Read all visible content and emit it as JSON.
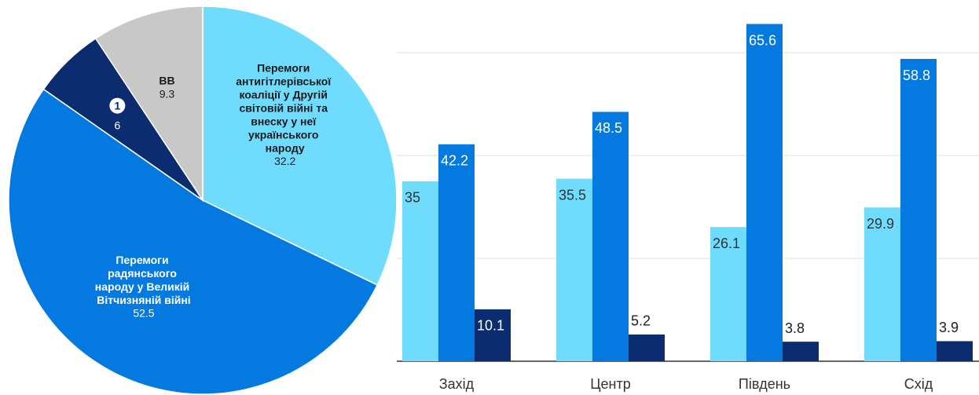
{
  "chart_data": [
    {
      "type": "pie",
      "categories": [
        "Перемоги антигітлерівської коаліції у Другій світовій війні та внеску у неї українського народу",
        "Перемоги радянського народу у Великій Вітчизняній війні",
        "1",
        "ВВ"
      ],
      "values": [
        32.2,
        52.5,
        6,
        9.3
      ],
      "colors": [
        "#6fdcfd",
        "#0479e0",
        "#0b2d70",
        "#c8c8c8"
      ]
    },
    {
      "type": "bar",
      "categories": [
        "Захід",
        "Центр",
        "Південь",
        "Схід"
      ],
      "series": [
        {
          "color": "#6fdcfd",
          "values": [
            35,
            35.5,
            26.1,
            29.9
          ]
        },
        {
          "color": "#0479e0",
          "values": [
            42.2,
            48.5,
            65.6,
            58.8
          ]
        },
        {
          "color": "#0b2d70",
          "values": [
            10.1,
            5.2,
            3.8,
            3.9
          ]
        }
      ],
      "ylim": [
        0,
        70
      ],
      "yticks": [
        0,
        20,
        40,
        60
      ],
      "grid": true
    }
  ]
}
